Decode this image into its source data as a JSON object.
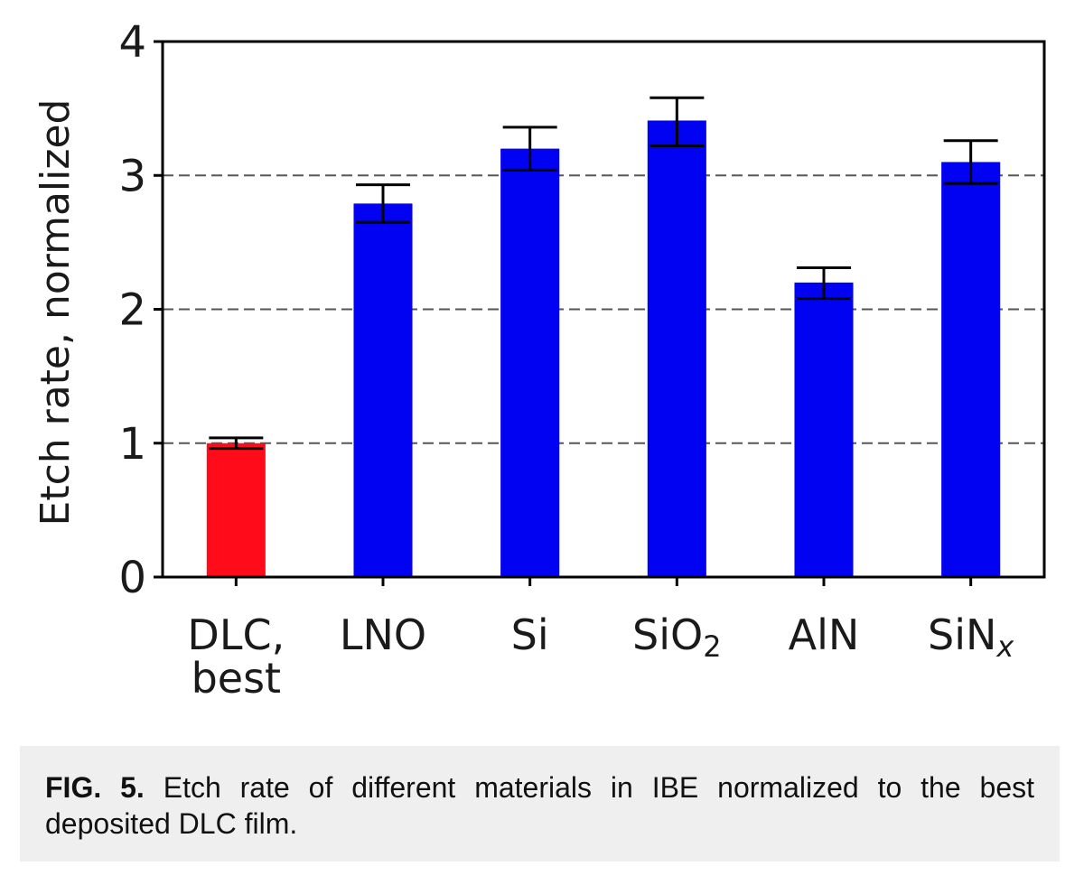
{
  "chart_data": {
    "type": "bar",
    "categories": [
      {
        "lines": [
          "DLC,",
          "best"
        ]
      },
      {
        "lines": [
          "LNO"
        ]
      },
      {
        "lines": [
          "Si"
        ]
      },
      {
        "lines": [
          "SiO"
        ],
        "sub": "2"
      },
      {
        "lines": [
          "AlN"
        ]
      },
      {
        "lines": [
          "SiN"
        ],
        "sub": "x",
        "sub_italic": true
      }
    ],
    "values": [
      1.0,
      2.79,
      3.2,
      3.41,
      2.2,
      3.1
    ],
    "error_low": [
      0.96,
      2.65,
      3.04,
      3.22,
      2.08,
      2.94
    ],
    "error_high": [
      1.04,
      2.93,
      3.36,
      3.58,
      2.31,
      3.26
    ],
    "bar_colors": [
      "#ff0b1a",
      "#0202f2",
      "#0202f2",
      "#0202f2",
      "#0202f2",
      "#0202f2"
    ],
    "ylabel": "Etch rate, normalized",
    "ylim": [
      0,
      4
    ],
    "yticks": [
      "0",
      "1",
      "2",
      "3",
      "4"
    ],
    "grid": "horizontal dashed at 1, 2, 3",
    "legend": "none"
  },
  "caption": {
    "label": "FIG. 5.",
    "text": "Etch rate of different materials in IBE normalized to the best deposited DLC film."
  }
}
